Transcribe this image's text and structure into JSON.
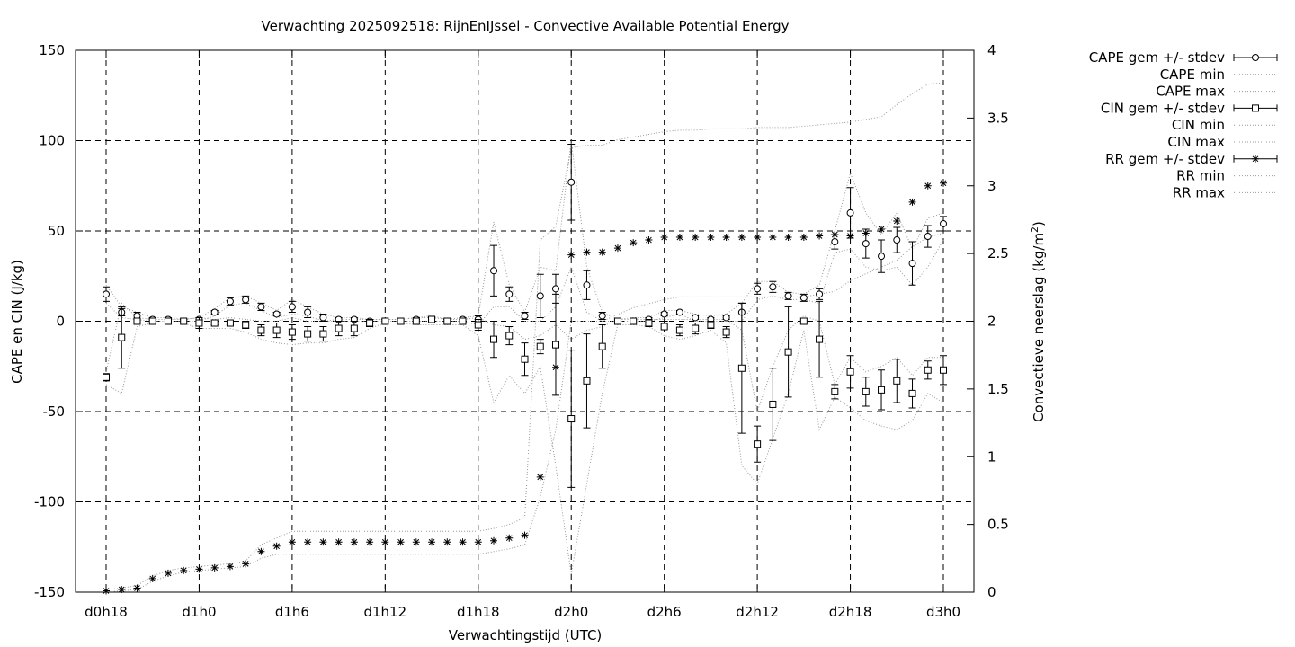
{
  "chart_data": {
    "type": "scatter",
    "title": "Verwachting 2025092518: RijnEnIJssel - Convective Available Potential Energy",
    "xlabel": "Verwachtingstijd (UTC)",
    "ylabel": "CAPE en CIN (J/kg)",
    "y2label": "Convectieve neerslag (kg/m",
    "y2label_sup": "2",
    "y2label_end": ")",
    "xlim": [
      18,
      72
    ],
    "ylim": [
      -150,
      150
    ],
    "y2lim": [
      0,
      4
    ],
    "xticks": [
      {
        "x": 18,
        "label": "d0h18"
      },
      {
        "x": 24,
        "label": "d1h0"
      },
      {
        "x": 30,
        "label": "d1h6"
      },
      {
        "x": 36,
        "label": "d1h12"
      },
      {
        "x": 42,
        "label": "d1h18"
      },
      {
        "x": 48,
        "label": "d2h0"
      },
      {
        "x": 54,
        "label": "d2h6"
      },
      {
        "x": 60,
        "label": "d2h12"
      },
      {
        "x": 66,
        "label": "d2h18"
      },
      {
        "x": 72,
        "label": "d3h0"
      }
    ],
    "yticks": [
      "-150",
      "-100",
      "-50",
      "0",
      "50",
      "100",
      "150"
    ],
    "yticks_values": [
      -150,
      -100,
      -50,
      0,
      50,
      100,
      150
    ],
    "y2ticks": [
      "0",
      "0.5",
      "1",
      "1.5",
      "2",
      "2.5",
      "3",
      "3.5",
      "4"
    ],
    "y2ticks_values": [
      0,
      0.5,
      1,
      1.5,
      2,
      2.5,
      3,
      3.5,
      4
    ],
    "grid": true,
    "legend_position": "outside-top-right",
    "legend": [
      "CAPE gem +/- stdev",
      "CAPE min",
      "CAPE max",
      "CIN gem +/- stdev",
      "CIN min",
      "CIN max",
      "RR gem +/- stdev",
      "RR min",
      "RR max"
    ],
    "x": [
      18,
      19,
      20,
      21,
      22,
      23,
      24,
      25,
      26,
      27,
      28,
      29,
      30,
      31,
      32,
      33,
      34,
      35,
      36,
      37,
      38,
      39,
      40,
      41,
      42,
      43,
      44,
      45,
      46,
      47,
      48,
      49,
      50,
      51,
      52,
      53,
      54,
      55,
      56,
      57,
      58,
      59,
      60,
      61,
      62,
      63,
      64,
      65,
      66,
      67,
      68,
      69,
      70,
      71,
      72
    ],
    "series": [
      {
        "name": "CAPE gem +/- stdev",
        "axis": "y1",
        "marker": "circle",
        "mean": [
          15,
          5,
          3,
          1,
          1,
          0,
          1,
          5,
          11,
          12,
          8,
          4,
          8,
          5,
          2,
          1,
          1,
          0,
          0,
          0,
          1,
          1,
          0,
          1,
          1,
          28,
          15,
          3,
          14,
          18,
          77,
          20,
          3,
          0,
          0,
          1,
          4,
          5,
          2,
          1,
          2,
          5,
          18,
          19,
          14,
          13,
          15,
          44,
          60,
          43,
          36,
          45,
          32,
          47,
          54
        ],
        "err": [
          4,
          2,
          2,
          1,
          1,
          1,
          1,
          1,
          2,
          2,
          2,
          1,
          3,
          3,
          2,
          1,
          1,
          1,
          0,
          0,
          1,
          1,
          1,
          1,
          2,
          14,
          4,
          2,
          12,
          8,
          21,
          8,
          2,
          0,
          1,
          1,
          1,
          1,
          1,
          1,
          1,
          5,
          3,
          3,
          2,
          2,
          3,
          4,
          14,
          8,
          9,
          7,
          12,
          6,
          4
        ]
      },
      {
        "name": "CAPE min",
        "axis": "y1",
        "values": [
          10,
          2,
          1,
          0,
          0,
          0,
          0,
          3,
          9,
          10,
          6,
          2,
          4,
          3,
          0,
          0,
          0,
          0,
          0,
          0,
          0,
          0,
          0,
          0,
          -2,
          8,
          8,
          0,
          0,
          8,
          30,
          5,
          0,
          0,
          0,
          0,
          2,
          4,
          0,
          0,
          0,
          0,
          12,
          14,
          12,
          12,
          10,
          38,
          40,
          30,
          28,
          30,
          20,
          30,
          45
        ]
      },
      {
        "name": "CAPE max",
        "axis": "y1",
        "values": [
          20,
          8,
          5,
          2,
          2,
          1,
          2,
          7,
          13,
          14,
          10,
          6,
          12,
          8,
          4,
          2,
          2,
          1,
          1,
          1,
          2,
          2,
          1,
          2,
          3,
          55,
          20,
          5,
          30,
          28,
          100,
          30,
          5,
          1,
          2,
          2,
          6,
          6,
          4,
          3,
          4,
          10,
          22,
          22,
          16,
          15,
          20,
          50,
          82,
          60,
          48,
          60,
          40,
          57,
          60
        ]
      },
      {
        "name": "CIN gem +/- stdev",
        "axis": "y1",
        "marker": "square",
        "mean": [
          -31,
          -9,
          0,
          0,
          0,
          0,
          -1,
          -1,
          -1,
          -2,
          -5,
          -5,
          -6,
          -7,
          -7,
          -4,
          -4,
          -1,
          0,
          0,
          0,
          1,
          0,
          0,
          -2,
          -10,
          -8,
          -21,
          -14,
          -13,
          -54,
          -33,
          -14,
          0,
          0,
          -1,
          -3,
          -5,
          -4,
          -2,
          -6,
          -26,
          -68,
          -46,
          -17,
          0,
          -10,
          -39,
          -28,
          -39,
          -38,
          -33,
          -40,
          -27,
          -27
        ],
        "err": [
          2,
          17,
          1,
          0,
          0,
          1,
          3,
          1,
          1,
          2,
          3,
          4,
          4,
          4,
          4,
          4,
          4,
          2,
          1,
          1,
          1,
          1,
          1,
          1,
          3,
          10,
          5,
          9,
          4,
          28,
          38,
          26,
          12,
          1,
          1,
          2,
          3,
          3,
          3,
          2,
          3,
          36,
          10,
          20,
          25,
          0,
          21,
          4,
          9,
          8,
          11,
          12,
          8,
          5,
          8
        ]
      },
      {
        "name": "CIN min",
        "axis": "y1",
        "values": [
          -35,
          -40,
          -3,
          -1,
          -1,
          -1,
          -4,
          -4,
          -4,
          -6,
          -10,
          -12,
          -13,
          -12,
          -12,
          -10,
          -9,
          -4,
          -1,
          -1,
          -2,
          -2,
          -2,
          -2,
          -8,
          -45,
          -30,
          -40,
          -25,
          -80,
          -140,
          -90,
          -40,
          -2,
          -2,
          -3,
          -8,
          -10,
          -8,
          -5,
          -12,
          -80,
          -90,
          -65,
          -40,
          -5,
          -60,
          -42,
          -48,
          -55,
          -58,
          -60,
          -55,
          -40,
          -45
        ]
      },
      {
        "name": "CIN max",
        "axis": "y1",
        "values": [
          -28,
          10,
          2,
          1,
          1,
          1,
          2,
          1,
          2,
          1,
          0,
          0,
          2,
          0,
          0,
          1,
          1,
          1,
          1,
          1,
          2,
          3,
          1,
          1,
          2,
          -2,
          -3,
          -10,
          -8,
          -2,
          -10,
          -5,
          -3,
          1,
          1,
          1,
          1,
          1,
          1,
          1,
          1,
          -5,
          -50,
          -25,
          -5,
          3,
          0,
          -35,
          -20,
          -28,
          -25,
          -20,
          -30,
          -20,
          -20
        ]
      },
      {
        "name": "RR gem +/- stdev",
        "axis": "y2",
        "marker": "star",
        "mean": [
          0.01,
          0.02,
          0.03,
          0.1,
          0.14,
          0.16,
          0.17,
          0.18,
          0.19,
          0.21,
          0.3,
          0.34,
          0.37,
          0.37,
          0.37,
          0.37,
          0.37,
          0.37,
          0.37,
          0.37,
          0.37,
          0.37,
          0.37,
          0.37,
          0.37,
          0.38,
          0.4,
          0.42,
          0.85,
          1.66,
          2.49,
          2.51,
          2.51,
          2.54,
          2.58,
          2.6,
          2.62,
          2.62,
          2.62,
          2.62,
          2.62,
          2.62,
          2.62,
          2.62,
          2.62,
          2.62,
          2.63,
          2.64,
          2.63,
          2.65,
          2.68,
          2.74,
          2.88,
          3,
          3.02
        ]
      },
      {
        "name": "RR min",
        "axis": "y2",
        "values": [
          0,
          0.01,
          0.02,
          0.08,
          0.12,
          0.15,
          0.16,
          0.17,
          0.18,
          0.19,
          0.25,
          0.28,
          0.28,
          0.28,
          0.28,
          0.28,
          0.28,
          0.28,
          0.28,
          0.28,
          0.28,
          0.28,
          0.28,
          0.28,
          0.28,
          0.3,
          0.32,
          0.35,
          0.7,
          1.2,
          2,
          2,
          2,
          2.05,
          2.1,
          2.13,
          2.16,
          2.18,
          2.18,
          2.18,
          2.18,
          2.18,
          2.18,
          2.18,
          2.18,
          2.18,
          2.2,
          2.22,
          2.3,
          2.35,
          2.4,
          2.45,
          2.55,
          2.62,
          2.65
        ]
      },
      {
        "name": "RR max",
        "axis": "y2",
        "values": [
          0.02,
          0.03,
          0.05,
          0.12,
          0.16,
          0.18,
          0.19,
          0.2,
          0.21,
          0.23,
          0.35,
          0.4,
          0.45,
          0.45,
          0.45,
          0.45,
          0.45,
          0.45,
          0.45,
          0.45,
          0.45,
          0.45,
          0.45,
          0.45,
          0.45,
          0.47,
          0.5,
          0.55,
          2.6,
          2.7,
          3.28,
          3.3,
          3.3,
          3.34,
          3.36,
          3.38,
          3.4,
          3.41,
          3.41,
          3.42,
          3.42,
          3.42,
          3.43,
          3.43,
          3.43,
          3.44,
          3.45,
          3.46,
          3.47,
          3.49,
          3.51,
          3.6,
          3.68,
          3.75,
          3.76
        ]
      }
    ]
  }
}
